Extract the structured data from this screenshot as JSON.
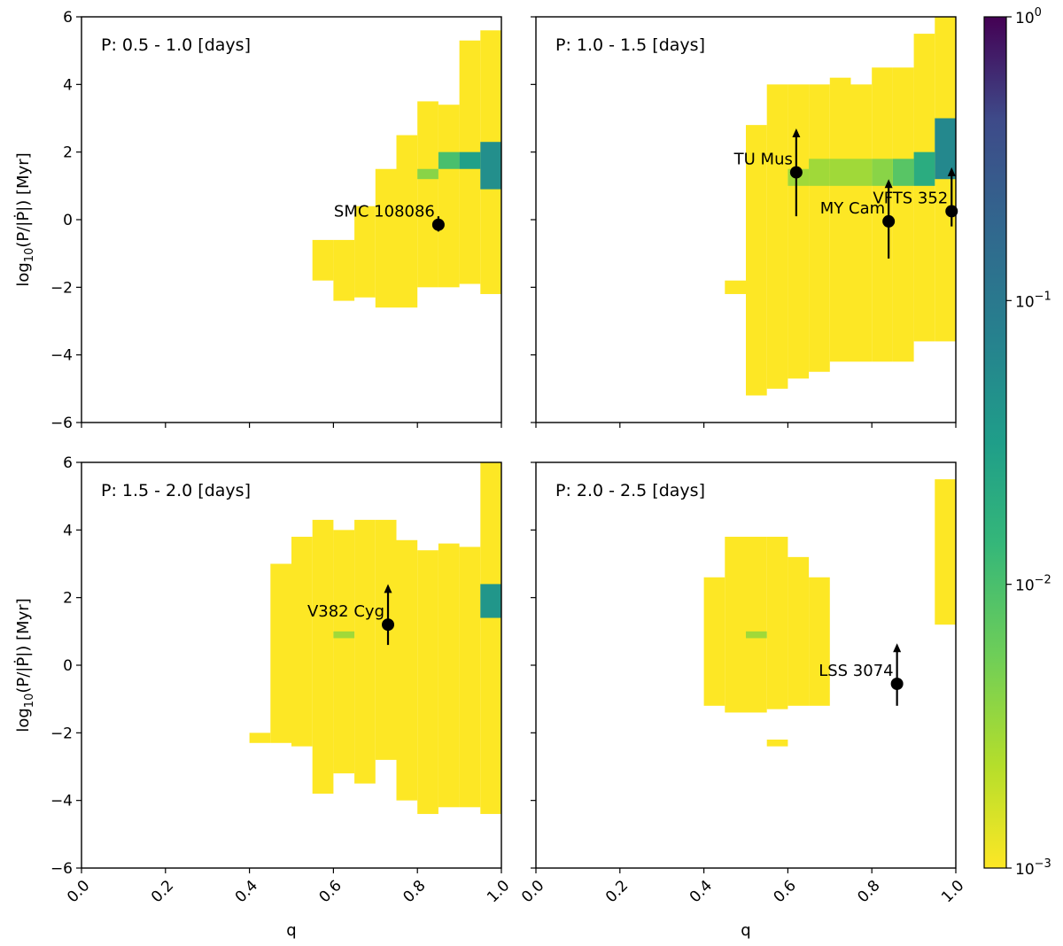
{
  "chart_data": {
    "type": "heatmap",
    "layout": "2x2 panels with shared axes",
    "xlabel": "q",
    "ylabel": "log10(P/|Ṗ|) [Myr]",
    "xlim": [
      0.0,
      1.0
    ],
    "ylim": [
      -6,
      6
    ],
    "xticks": [
      0.0,
      0.2,
      0.4,
      0.6,
      0.8,
      1.0
    ],
    "xtick_labels": [
      "0.0",
      "0.2",
      "0.4",
      "0.6",
      "0.8",
      "1.0"
    ],
    "yticks": [
      -6,
      -4,
      -2,
      0,
      2,
      4,
      6
    ],
    "ytick_labels": [
      "−6",
      "−4",
      "−2",
      "0",
      "2",
      "4",
      "6"
    ],
    "bin_size": {
      "q": 0.05,
      "logP": 0.3
    },
    "colorbar": {
      "scale": "log",
      "range": [
        0.001,
        1.0
      ],
      "colormap": "viridis_r",
      "tick_labels": [
        {
          "value": 1.0,
          "base": "10",
          "exp": "0"
        },
        {
          "value": 0.1,
          "base": "10",
          "exp": "−1"
        },
        {
          "value": 0.01,
          "base": "10",
          "exp": "−2"
        },
        {
          "value": 0.001,
          "base": "10",
          "exp": "−3"
        }
      ]
    },
    "colors": {
      "low": "#fde725",
      "mid_low": "#cde11d",
      "mid": "#73d056",
      "mid_high": "#2ab07f",
      "high": "#21918c",
      "top": "#3b528b",
      "max": "#440154",
      "marker": "#000000"
    },
    "panels": [
      {
        "title": "P: 0.5 - 1.0 [days]",
        "cells": [
          {
            "q": 0.95,
            "y": [
              -2.2,
              5.6
            ],
            "value": 0.001
          },
          {
            "q": 0.9,
            "y": [
              -1.9,
              5.3
            ],
            "value": 0.001
          },
          {
            "q": 0.85,
            "y": [
              -2.0,
              3.4
            ],
            "value": 0.001
          },
          {
            "q": 0.8,
            "y": [
              -2.0,
              3.5
            ],
            "value": 0.001
          },
          {
            "q": 0.75,
            "y": [
              -2.6,
              2.5
            ],
            "value": 0.001
          },
          {
            "q": 0.7,
            "y": [
              -2.6,
              1.5
            ],
            "value": 0.001
          },
          {
            "q": 0.65,
            "y": [
              -2.3,
              0.4
            ],
            "value": 0.001
          },
          {
            "q": 0.6,
            "y": [
              -2.4,
              -0.6
            ],
            "value": 0.001
          },
          {
            "q": 0.55,
            "y": [
              -1.8,
              -0.6
            ],
            "value": 0.001
          },
          {
            "q": 0.95,
            "y": [
              0.9,
              2.3
            ],
            "value": 0.05
          },
          {
            "q": 0.9,
            "y": [
              1.5,
              2.0
            ],
            "value": 0.03
          },
          {
            "q": 0.85,
            "y": [
              1.5,
              2.0
            ],
            "value": 0.01
          },
          {
            "q": 0.8,
            "y": [
              1.2,
              1.5
            ],
            "value": 0.004
          }
        ],
        "stars": [
          {
            "name": "SMC 108086",
            "q": 0.85,
            "logP": -0.15,
            "err_low": 0.2,
            "err_high": 0.25,
            "lower_limit": false
          }
        ]
      },
      {
        "title": "P: 1.0 - 1.5 [days]",
        "cells": [
          {
            "q": 0.95,
            "y": [
              -3.6,
              6.0
            ],
            "value": 0.001
          },
          {
            "q": 0.9,
            "y": [
              -3.6,
              5.5
            ],
            "value": 0.001
          },
          {
            "q": 0.85,
            "y": [
              -4.2,
              4.5
            ],
            "value": 0.001
          },
          {
            "q": 0.8,
            "y": [
              -4.2,
              4.5
            ],
            "value": 0.001
          },
          {
            "q": 0.75,
            "y": [
              -4.2,
              4.0
            ],
            "value": 0.001
          },
          {
            "q": 0.7,
            "y": [
              -4.2,
              4.2
            ],
            "value": 0.001
          },
          {
            "q": 0.65,
            "y": [
              -4.5,
              4.0
            ],
            "value": 0.001
          },
          {
            "q": 0.6,
            "y": [
              -4.7,
              4.0
            ],
            "value": 0.001
          },
          {
            "q": 0.55,
            "y": [
              -5.0,
              4.0
            ],
            "value": 0.001
          },
          {
            "q": 0.5,
            "y": [
              -5.2,
              2.8
            ],
            "value": 0.001
          },
          {
            "q": 0.45,
            "y": [
              -2.2,
              -1.8
            ],
            "value": 0.001
          },
          {
            "q": 0.95,
            "y": [
              1.2,
              3.0
            ],
            "value": 0.06
          },
          {
            "q": 0.9,
            "y": [
              1.0,
              2.0
            ],
            "value": 0.02
          },
          {
            "q": 0.85,
            "y": [
              1.0,
              1.8
            ],
            "value": 0.008
          },
          {
            "q": 0.8,
            "y": [
              1.0,
              1.8
            ],
            "value": 0.004
          },
          {
            "q": 0.75,
            "y": [
              1.0,
              1.8
            ],
            "value": 0.003
          },
          {
            "q": 0.7,
            "y": [
              1.0,
              1.8
            ],
            "value": 0.003
          },
          {
            "q": 0.65,
            "y": [
              1.0,
              1.8
            ],
            "value": 0.003
          },
          {
            "q": 0.6,
            "y": [
              1.0,
              1.5
            ],
            "value": 0.003
          }
        ],
        "stars": [
          {
            "name": "TU Mus",
            "q": 0.62,
            "logP": 1.4,
            "err_low": 1.3,
            "err_high": 1.3,
            "lower_limit": true
          },
          {
            "name": "MY Cam",
            "q": 0.84,
            "logP": -0.05,
            "err_low": 1.1,
            "err_high": 1.25,
            "lower_limit": true
          },
          {
            "name": "VFTS 352",
            "q": 0.99,
            "logP": 0.25,
            "err_low": 0.45,
            "err_high": 1.3,
            "lower_limit": true
          }
        ]
      },
      {
        "title": "P: 1.5 - 2.0 [days]",
        "cells": [
          {
            "q": 0.95,
            "y": [
              -4.4,
              6.0
            ],
            "value": 0.001
          },
          {
            "q": 0.9,
            "y": [
              -4.2,
              3.5
            ],
            "value": 0.001
          },
          {
            "q": 0.85,
            "y": [
              -4.2,
              3.6
            ],
            "value": 0.001
          },
          {
            "q": 0.8,
            "y": [
              -4.4,
              3.4
            ],
            "value": 0.001
          },
          {
            "q": 0.75,
            "y": [
              -4.0,
              3.7
            ],
            "value": 0.001
          },
          {
            "q": 0.7,
            "y": [
              -2.8,
              4.3
            ],
            "value": 0.001
          },
          {
            "q": 0.65,
            "y": [
              -3.5,
              4.3
            ],
            "value": 0.001
          },
          {
            "q": 0.6,
            "y": [
              -3.2,
              4.0
            ],
            "value": 0.001
          },
          {
            "q": 0.55,
            "y": [
              -3.8,
              4.3
            ],
            "value": 0.001
          },
          {
            "q": 0.5,
            "y": [
              -2.4,
              3.8
            ],
            "value": 0.001
          },
          {
            "q": 0.45,
            "y": [
              -2.3,
              3.0
            ],
            "value": 0.001
          },
          {
            "q": 0.4,
            "y": [
              -2.3,
              -2.0
            ],
            "value": 0.001
          },
          {
            "q": 0.95,
            "y": [
              1.4,
              2.4
            ],
            "value": 0.04
          },
          {
            "q": 0.6,
            "y": [
              0.8,
              1.0
            ],
            "value": 0.003
          }
        ],
        "stars": [
          {
            "name": "V382 Cyg",
            "q": 0.73,
            "logP": 1.2,
            "err_low": 0.6,
            "err_high": 1.2,
            "lower_limit": true
          }
        ]
      },
      {
        "title": "P: 2.0 - 2.5 [days]",
        "cells": [
          {
            "q": 0.95,
            "y": [
              1.2,
              5.5
            ],
            "value": 0.001
          },
          {
            "q": 0.65,
            "y": [
              -1.2,
              2.6
            ],
            "value": 0.001
          },
          {
            "q": 0.6,
            "y": [
              -1.2,
              3.2
            ],
            "value": 0.001
          },
          {
            "q": 0.55,
            "y": [
              -1.3,
              3.8
            ],
            "value": 0.001
          },
          {
            "q": 0.5,
            "y": [
              -1.4,
              3.8
            ],
            "value": 0.001
          },
          {
            "q": 0.45,
            "y": [
              -1.4,
              3.8
            ],
            "value": 0.001
          },
          {
            "q": 0.4,
            "y": [
              -1.2,
              2.6
            ],
            "value": 0.001
          },
          {
            "q": 0.5,
            "y": [
              0.8,
              1.0
            ],
            "value": 0.003
          },
          {
            "q": 0.55,
            "y": [
              -2.4,
              -2.2
            ],
            "value": 0.001
          }
        ],
        "stars": [
          {
            "name": "LSS 3074",
            "q": 0.86,
            "logP": -0.55,
            "err_low": 0.65,
            "err_high": 1.2,
            "lower_limit": true
          }
        ]
      }
    ]
  }
}
